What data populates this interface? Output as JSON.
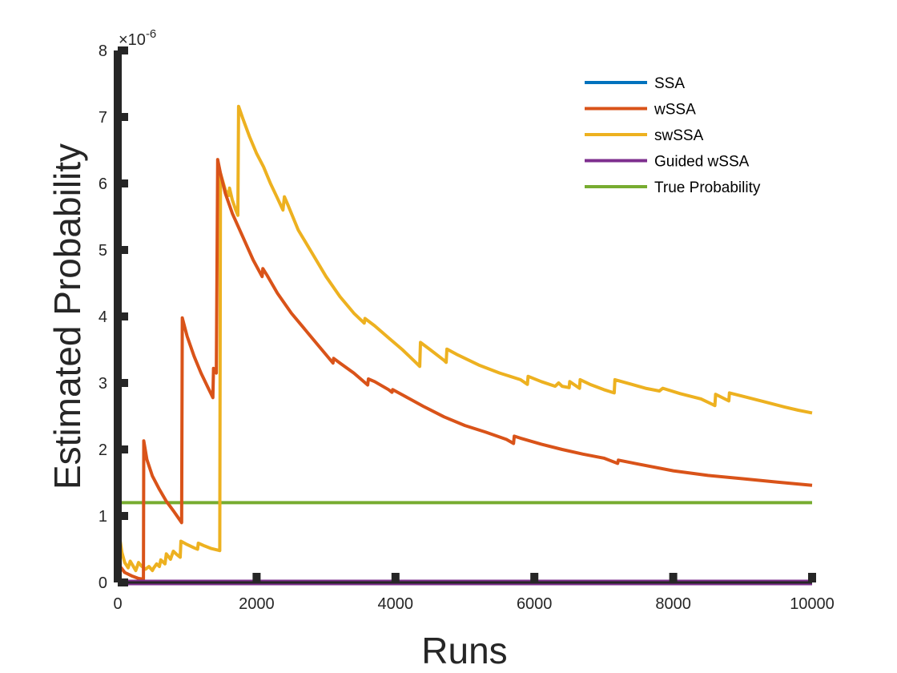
{
  "chart_data": {
    "type": "line",
    "xlabel": "Runs",
    "ylabel": "Estimated Probability",
    "y_exponent_label": "×10",
    "y_exponent_power": "-6",
    "xlim": [
      0,
      10000
    ],
    "ylim": [
      0,
      8
    ],
    "x_ticks": [
      "0",
      "2000",
      "4000",
      "6000",
      "8000",
      "10000"
    ],
    "y_ticks": [
      "0",
      "1",
      "2",
      "3",
      "4",
      "5",
      "6",
      "7",
      "8"
    ],
    "grid": false,
    "legend_position": "top-right",
    "series": [
      {
        "name": "SSA",
        "color": "#0072BD",
        "points": [
          [
            0,
            0
          ],
          [
            10000,
            0
          ]
        ]
      },
      {
        "name": "wSSA",
        "color": "#D95319",
        "points": [
          [
            0,
            0.05
          ],
          [
            50,
            0.22
          ],
          [
            100,
            0.15
          ],
          [
            200,
            0.1
          ],
          [
            300,
            0.06
          ],
          [
            370,
            0.05
          ],
          [
            375,
            2.13
          ],
          [
            420,
            1.85
          ],
          [
            500,
            1.6
          ],
          [
            600,
            1.4
          ],
          [
            700,
            1.22
          ],
          [
            800,
            1.08
          ],
          [
            920,
            0.9
          ],
          [
            930,
            3.98
          ],
          [
            1000,
            3.7
          ],
          [
            1100,
            3.4
          ],
          [
            1200,
            3.15
          ],
          [
            1300,
            2.93
          ],
          [
            1370,
            2.78
          ],
          [
            1380,
            3.22
          ],
          [
            1420,
            3.15
          ],
          [
            1440,
            6.36
          ],
          [
            1480,
            6.15
          ],
          [
            1550,
            5.85
          ],
          [
            1650,
            5.55
          ],
          [
            1800,
            5.2
          ],
          [
            1950,
            4.85
          ],
          [
            2080,
            4.6
          ],
          [
            2090,
            4.72
          ],
          [
            2150,
            4.62
          ],
          [
            2300,
            4.35
          ],
          [
            2500,
            4.05
          ],
          [
            2700,
            3.8
          ],
          [
            2900,
            3.55
          ],
          [
            3100,
            3.3
          ],
          [
            3110,
            3.37
          ],
          [
            3200,
            3.3
          ],
          [
            3400,
            3.15
          ],
          [
            3600,
            2.97
          ],
          [
            3610,
            3.06
          ],
          [
            3700,
            3.02
          ],
          [
            3900,
            2.9
          ],
          [
            3950,
            2.86
          ],
          [
            3960,
            2.9
          ],
          [
            4100,
            2.82
          ],
          [
            4400,
            2.65
          ],
          [
            4700,
            2.49
          ],
          [
            5000,
            2.36
          ],
          [
            5300,
            2.26
          ],
          [
            5600,
            2.15
          ],
          [
            5700,
            2.09
          ],
          [
            5710,
            2.2
          ],
          [
            5800,
            2.17
          ],
          [
            6100,
            2.08
          ],
          [
            6400,
            2.0
          ],
          [
            6700,
            1.93
          ],
          [
            7000,
            1.87
          ],
          [
            7200,
            1.79
          ],
          [
            7210,
            1.84
          ],
          [
            7500,
            1.78
          ],
          [
            8000,
            1.68
          ],
          [
            8500,
            1.61
          ],
          [
            9000,
            1.56
          ],
          [
            9500,
            1.51
          ],
          [
            10000,
            1.46
          ]
        ]
      },
      {
        "name": "swSSA",
        "color": "#EDB120",
        "points": [
          [
            0,
            0.1
          ],
          [
            30,
            0.66
          ],
          [
            60,
            0.45
          ],
          [
            100,
            0.3
          ],
          [
            150,
            0.22
          ],
          [
            180,
            0.32
          ],
          [
            220,
            0.25
          ],
          [
            260,
            0.18
          ],
          [
            300,
            0.3
          ],
          [
            340,
            0.25
          ],
          [
            400,
            0.2
          ],
          [
            450,
            0.24
          ],
          [
            500,
            0.18
          ],
          [
            520,
            0.22
          ],
          [
            560,
            0.28
          ],
          [
            600,
            0.24
          ],
          [
            620,
            0.34
          ],
          [
            680,
            0.28
          ],
          [
            700,
            0.43
          ],
          [
            760,
            0.35
          ],
          [
            800,
            0.47
          ],
          [
            850,
            0.42
          ],
          [
            900,
            0.38
          ],
          [
            910,
            0.62
          ],
          [
            1000,
            0.57
          ],
          [
            1100,
            0.52
          ],
          [
            1150,
            0.5
          ],
          [
            1160,
            0.59
          ],
          [
            1250,
            0.55
          ],
          [
            1350,
            0.51
          ],
          [
            1470,
            0.48
          ],
          [
            1480,
            6.15
          ],
          [
            1550,
            5.9
          ],
          [
            1600,
            5.82
          ],
          [
            1610,
            5.93
          ],
          [
            1650,
            5.75
          ],
          [
            1700,
            5.6
          ],
          [
            1730,
            5.52
          ],
          [
            1740,
            7.16
          ],
          [
            1800,
            6.98
          ],
          [
            1900,
            6.7
          ],
          [
            2000,
            6.45
          ],
          [
            2100,
            6.25
          ],
          [
            2200,
            6.0
          ],
          [
            2300,
            5.78
          ],
          [
            2380,
            5.6
          ],
          [
            2400,
            5.8
          ],
          [
            2450,
            5.68
          ],
          [
            2600,
            5.3
          ],
          [
            2800,
            4.95
          ],
          [
            3000,
            4.6
          ],
          [
            3200,
            4.3
          ],
          [
            3400,
            4.05
          ],
          [
            3550,
            3.9
          ],
          [
            3560,
            3.97
          ],
          [
            3700,
            3.86
          ],
          [
            3900,
            3.68
          ],
          [
            4100,
            3.5
          ],
          [
            4300,
            3.3
          ],
          [
            4350,
            3.25
          ],
          [
            4360,
            3.61
          ],
          [
            4500,
            3.5
          ],
          [
            4700,
            3.34
          ],
          [
            4730,
            3.31
          ],
          [
            4740,
            3.51
          ],
          [
            4900,
            3.42
          ],
          [
            5200,
            3.27
          ],
          [
            5500,
            3.15
          ],
          [
            5800,
            3.05
          ],
          [
            5900,
            2.98
          ],
          [
            5910,
            3.1
          ],
          [
            6100,
            3.02
          ],
          [
            6300,
            2.95
          ],
          [
            6350,
            3.0
          ],
          [
            6400,
            2.95
          ],
          [
            6500,
            2.93
          ],
          [
            6510,
            3.02
          ],
          [
            6650,
            2.92
          ],
          [
            6660,
            3.05
          ],
          [
            6800,
            2.98
          ],
          [
            7000,
            2.9
          ],
          [
            7150,
            2.85
          ],
          [
            7160,
            3.05
          ],
          [
            7400,
            2.98
          ],
          [
            7600,
            2.92
          ],
          [
            7800,
            2.88
          ],
          [
            7850,
            2.92
          ],
          [
            8100,
            2.84
          ],
          [
            8400,
            2.76
          ],
          [
            8600,
            2.66
          ],
          [
            8610,
            2.83
          ],
          [
            8800,
            2.73
          ],
          [
            8810,
            2.85
          ],
          [
            9000,
            2.8
          ],
          [
            9300,
            2.72
          ],
          [
            9600,
            2.64
          ],
          [
            9800,
            2.59
          ],
          [
            10000,
            2.55
          ]
        ]
      },
      {
        "name": "Guided wSSA",
        "color": "#7E2F8E",
        "points": [
          [
            0,
            0
          ],
          [
            10000,
            0
          ]
        ]
      },
      {
        "name": "True Probability",
        "color": "#77AC30",
        "points": [
          [
            0,
            1.2
          ],
          [
            10000,
            1.2
          ]
        ]
      }
    ]
  }
}
